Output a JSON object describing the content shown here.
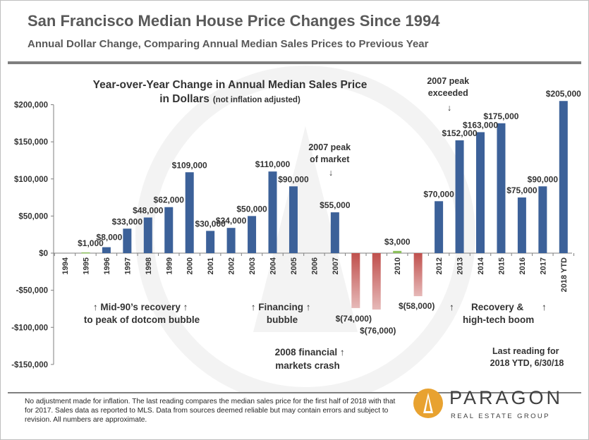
{
  "header": {
    "title": "San Francisco Median House Price Changes Since 1994",
    "subtitle": "Annual Dollar Change, Comparing Annual Median Sales Prices to Previous Year"
  },
  "colors": {
    "positive": "#3c6199",
    "negative": "#c0504d",
    "negative_light": "#e6b9b8",
    "slight": "#8bbf5a",
    "text": "#333333",
    "header": "#595959"
  },
  "chart_data": {
    "type": "bar",
    "title_main": "Year-over-Year Change in Annual Median Sales Price",
    "title_line2": "in Dollars",
    "title_note": "(not inflation adjusted)",
    "categories": [
      "1994",
      "1995",
      "1996",
      "1997",
      "1998",
      "1999",
      "2000",
      "2001",
      "2002",
      "2003",
      "2004",
      "2005",
      "2006",
      "2007",
      "2008",
      "2009",
      "2010",
      "2011",
      "2012",
      "2013",
      "2014",
      "2015",
      "2016",
      "2017",
      "2018 YTD"
    ],
    "values": [
      0,
      1000,
      8000,
      33000,
      48000,
      62000,
      109000,
      30000,
      34000,
      50000,
      110000,
      90000,
      0,
      55000,
      -74000,
      -76000,
      3000,
      -58000,
      70000,
      152000,
      163000,
      175000,
      75000,
      90000,
      205000
    ],
    "data_labels": [
      "",
      "$1,000",
      "$8,000",
      "$33,000",
      "$48,000",
      "$62,000",
      "$109,000",
      "$30,000",
      "$34,000",
      "$50,000",
      "$110,000",
      "$90,000",
      "",
      "$55,000",
      "$(74,000)",
      "$(76,000)",
      "$3,000",
      "$(58,000)",
      "$70,000",
      "$152,000",
      "$163,000",
      "$175,000",
      "$75,000",
      "$90,000",
      "$205,000"
    ],
    "y_ticks": [
      200000,
      150000,
      100000,
      50000,
      0,
      -50000,
      -100000,
      -150000
    ],
    "y_tick_labels": [
      "$200,000",
      "$150,000",
      "$100,000",
      "$50,000",
      "$0",
      "-$50,000",
      "-$100,000",
      "-$150,000"
    ],
    "ylim": [
      -150000,
      200000
    ],
    "grid": false,
    "xlabel": "",
    "ylabel": "",
    "annotations": {
      "peak2007": [
        "2007 peak",
        "of market",
        "↓"
      ],
      "peak_exceeded": [
        "2007 peak",
        "exceeded",
        "↓"
      ],
      "mid90s": [
        "↑  Mid-90’s recovery ↑",
        "to peak of dotcom bubble"
      ],
      "financing": [
        "↑ Financing ↑",
        "bubble"
      ],
      "crash": [
        "2008 financial ↑",
        "markets crash"
      ],
      "recovery": [
        "↑",
        "Recovery &",
        "high-tech boom",
        "↑"
      ],
      "last_reading": [
        "Last reading for",
        "2018 YTD, 6/30/18"
      ]
    }
  },
  "footer": {
    "note": "No adjustment made for inflation. The last reading compares the median sales price for the first half of 2018 with that for 2017. Sales data as reported to MLS. Data from sources deemed reliable but may contain errors and subject to revision. All numbers are approximate."
  },
  "logo": {
    "name": "PARAGON",
    "tagline": "REAL ESTATE GROUP"
  }
}
